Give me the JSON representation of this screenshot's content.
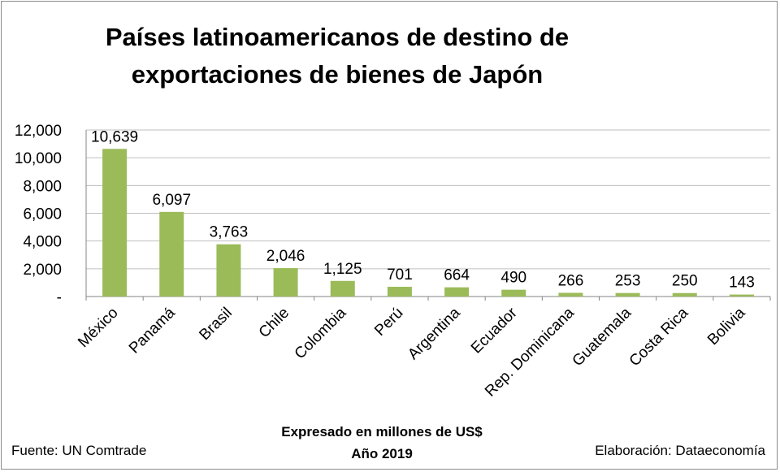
{
  "chart_data": {
    "type": "bar",
    "title": [
      "Países latinoamericanos de destino de",
      "exportaciones de bienes de Japón"
    ],
    "xlabel": [
      "Expresado en millones de US$",
      "Año 2019"
    ],
    "ylabel": "",
    "categories": [
      "México",
      "Panamá",
      "Brasil",
      "Chile",
      "Colombia",
      "Perú",
      "Argentina",
      "Ecuador",
      "Rep. Dominicana",
      "Guatemala",
      "Costa Rica",
      "Bolivia"
    ],
    "values": [
      10639,
      6097,
      3763,
      2046,
      1125,
      701,
      664,
      490,
      266,
      253,
      250,
      143
    ],
    "data_labels": [
      "10,639",
      "6,097",
      "3,763",
      "2,046",
      "1,125",
      "701",
      "664",
      "490",
      "266",
      "253",
      "250",
      "143"
    ],
    "ylim": [
      0,
      12000
    ],
    "yticks": [
      0,
      2000,
      4000,
      6000,
      8000,
      10000,
      12000
    ],
    "ytick_labels": [
      "-",
      "2,000",
      "4,000",
      "6,000",
      "8,000",
      "10,000",
      "12,000"
    ],
    "grid": true,
    "legend": false,
    "bar_color": "#9bbb59",
    "grid_color": "#bfbfbf"
  },
  "footer": {
    "source": "Fuente: UN Comtrade",
    "credit": "Elaboración: Dataeconomía"
  }
}
